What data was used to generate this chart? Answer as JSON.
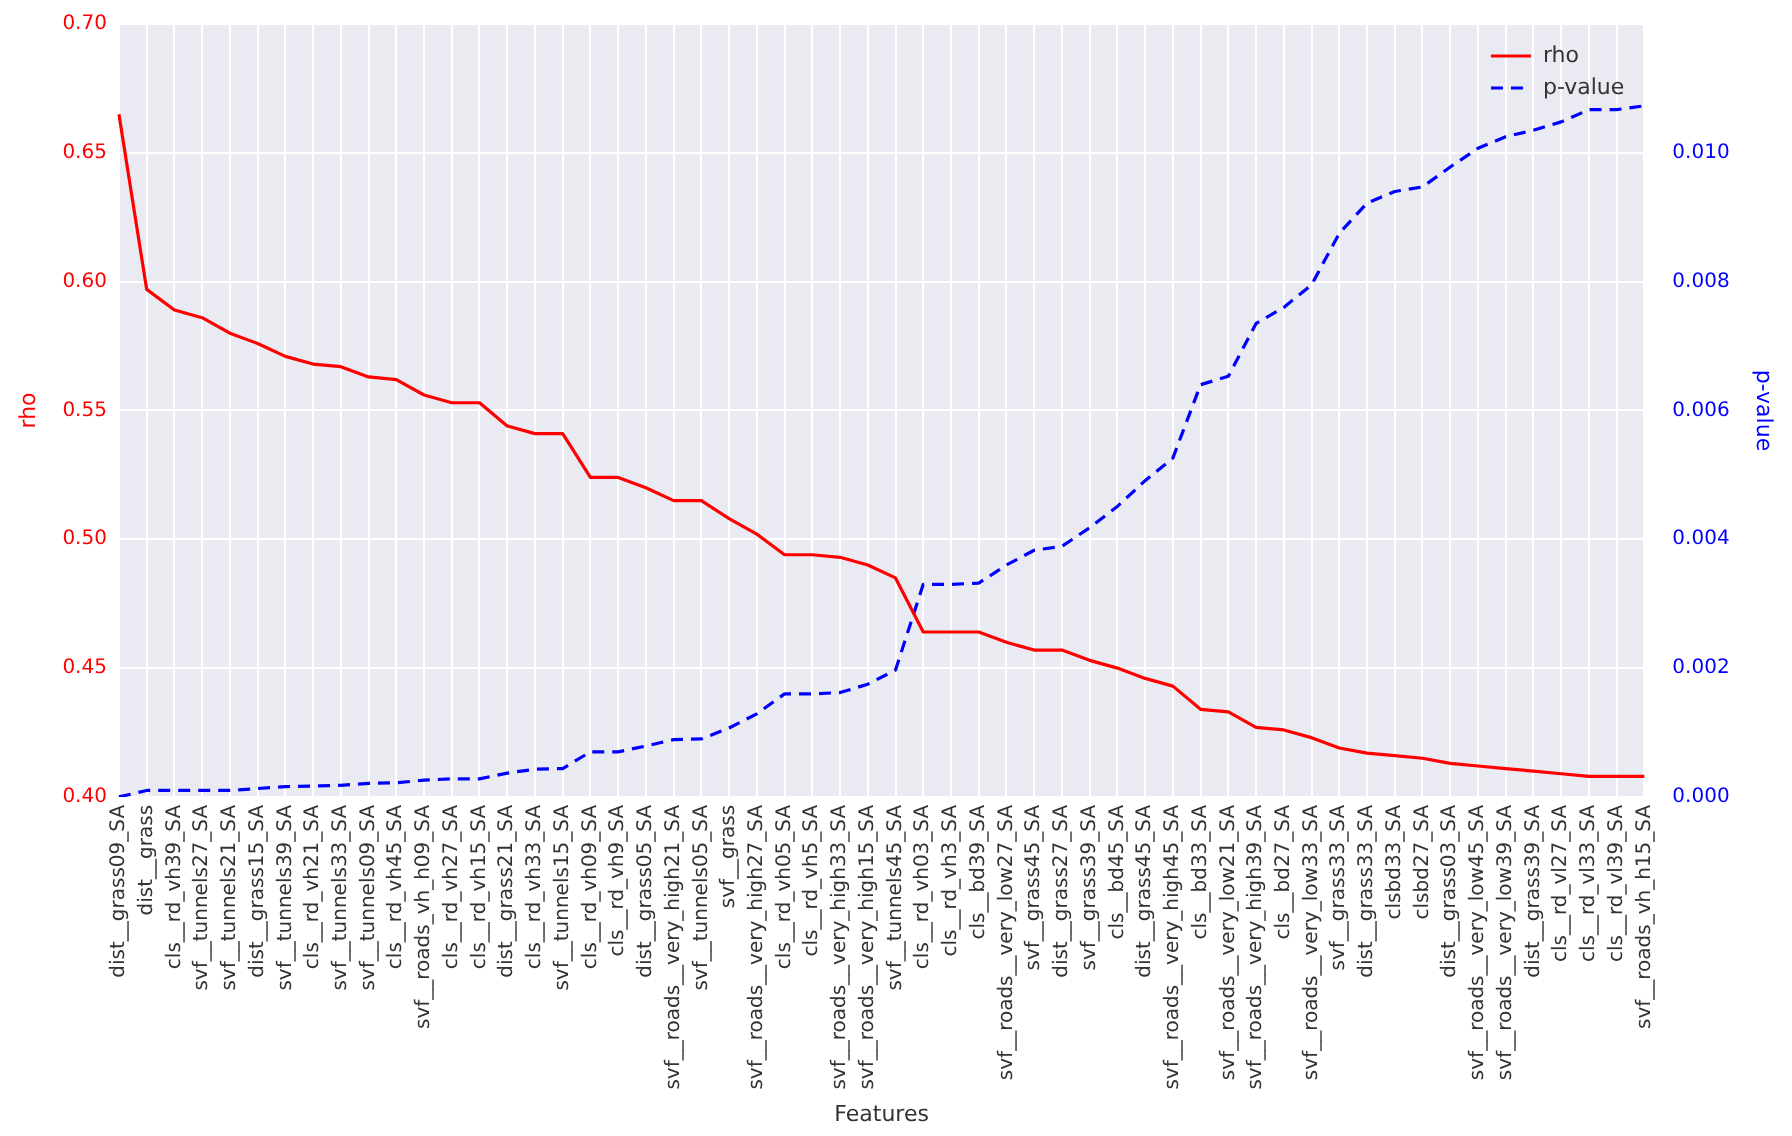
{
  "chart_data": {
    "type": "line",
    "xlabel": "Features",
    "ylabel": "rho",
    "y2label": "p-value",
    "categories": [
      "dist__grass09_SA",
      "dist__grass",
      "cls__rd_vh39_SA",
      "svf__tunnels27_SA",
      "svf__tunnels21_SA",
      "dist__grass15_SA",
      "svf__tunnels39_SA",
      "cls__rd_vh21_SA",
      "svf__tunnels33_SA",
      "svf__tunnels09_SA",
      "cls__rd_vh45_SA",
      "svf__roads_vh_h09_SA",
      "cls__rd_vh27_SA",
      "cls__rd_vh15_SA",
      "dist__grass21_SA",
      "cls__rd_vh33_SA",
      "svf__tunnels15_SA",
      "cls__rd_vh09_SA",
      "cls__rd_vh9_SA",
      "dist__grass05_SA",
      "svf__roads__very_high21_SA",
      "svf__tunnels05_SA",
      "svf__grass",
      "svf__roads__very_high27_SA",
      "cls__rd_vh05_SA",
      "cls__rd_vh5_SA",
      "svf__roads__very_high33_SA",
      "svf__roads__very_high15_SA",
      "svf__tunnels45_SA",
      "cls__rd_vh03_SA",
      "cls__rd_vh3_SA",
      "cls__bd39_SA",
      "svf__roads__very_low27_SA",
      "svf__grass45_SA",
      "dist__grass27_SA",
      "svf__grass39_SA",
      "cls__bd45_SA",
      "dist__grass45_SA",
      "svf__roads__very_high45_SA",
      "cls__bd33_SA",
      "svf__roads__very_low21_SA",
      "svf__roads__very_high39_SA",
      "cls__bd27_SA",
      "svf__roads__very_low33_SA",
      "svf__grass33_SA",
      "dist__grass33_SA",
      "clsbd33_SA",
      "clsbd27_SA",
      "dist__grass03_SA",
      "svf__roads__very_low45_SA",
      "svf__roads__very_low39_SA",
      "dist__grass39_SA",
      "cls__rd_vl27_SA",
      "cls__rd_vl33_SA",
      "cls__rd_vl39_SA",
      "svf__roads_vh_h15_SA"
    ],
    "series": [
      {
        "name": "rho",
        "color": "#ff0000",
        "line_style": "solid",
        "values": [
          0.665,
          0.597,
          0.589,
          0.586,
          0.58,
          0.576,
          0.571,
          0.568,
          0.567,
          0.563,
          0.562,
          0.556,
          0.553,
          0.553,
          0.544,
          0.541,
          0.541,
          0.524,
          0.524,
          0.52,
          0.515,
          0.515,
          0.508,
          0.502,
          0.494,
          0.494,
          0.493,
          0.49,
          0.485,
          0.464,
          0.464,
          0.464,
          0.46,
          0.457,
          0.457,
          0.453,
          0.45,
          0.446,
          0.443,
          0.434,
          0.433,
          0.427,
          0.426,
          0.423,
          0.419,
          0.417,
          0.416,
          0.415,
          0.413,
          0.412,
          0.411,
          0.41,
          0.409,
          0.408,
          0.408,
          0.408
        ]
      },
      {
        "name": "p-value",
        "color": "#0000ff",
        "line_style": "dashed",
        "axis": "y2",
        "values": [
          0.0,
          0.0001,
          0.0001,
          0.0001,
          0.0001,
          0.00013,
          0.00016,
          0.00017,
          0.00018,
          0.00021,
          0.00022,
          0.00026,
          0.00028,
          0.00028,
          0.00037,
          0.00043,
          0.00044,
          0.0007,
          0.0007,
          0.00079,
          0.00089,
          0.0009,
          0.00107,
          0.00129,
          0.0016,
          0.0016,
          0.00162,
          0.00175,
          0.00197,
          0.0033,
          0.0033,
          0.00332,
          0.0036,
          0.00383,
          0.00389,
          0.00418,
          0.00451,
          0.00491,
          0.00526,
          0.0064,
          0.00653,
          0.00735,
          0.0076,
          0.00795,
          0.00875,
          0.00922,
          0.0094,
          0.00947,
          0.00978,
          0.01007,
          0.01025,
          0.01035,
          0.01048,
          0.01067,
          0.01067,
          0.01073
        ]
      }
    ],
    "ylim": [
      0.4,
      0.7
    ],
    "yticks": [
      {
        "value": 0.4,
        "label": "0.40"
      },
      {
        "value": 0.45,
        "label": "0.45"
      },
      {
        "value": 0.5,
        "label": "0.50"
      },
      {
        "value": 0.55,
        "label": "0.55"
      },
      {
        "value": 0.6,
        "label": "0.60"
      },
      {
        "value": 0.65,
        "label": "0.65"
      },
      {
        "value": 0.7,
        "label": "0.70"
      }
    ],
    "y2lim": [
      0,
      0.012
    ],
    "y2ticks": [
      {
        "value": 0,
        "label": "0.000"
      },
      {
        "value": 0.002,
        "label": "0.002"
      },
      {
        "value": 0.004,
        "label": "0.004"
      },
      {
        "value": 0.006,
        "label": "0.006"
      },
      {
        "value": 0.008,
        "label": "0.008"
      },
      {
        "value": 0.01,
        "label": "0.010"
      }
    ],
    "grid": true,
    "legend": "top right",
    "marker": "none"
  }
}
